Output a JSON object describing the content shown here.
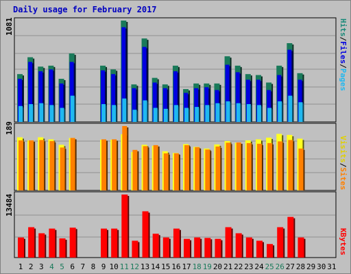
{
  "title": "Daily usage for February 2017",
  "colors": {
    "hits": "#1a7a5a",
    "files": "#0000e0",
    "pages": "#20b8f0",
    "visits": "#ffff20",
    "sites": "#ff8000",
    "kbytes": "#ff0000"
  },
  "legend": {
    "pages": "Pages",
    "files": "Files",
    "hits": "Hits",
    "sep": "/",
    "visits": "Visits",
    "sites": "Sites",
    "kbytes": "KBytes"
  },
  "axis_max": {
    "hits": "1081",
    "visits": "189",
    "kbytes": "13484"
  },
  "chart_data": [
    {
      "type": "bar",
      "name": "Hits/Files/Pages",
      "categories": [
        "1",
        "2",
        "3",
        "4",
        "5",
        "6",
        "7",
        "8",
        "9",
        "10",
        "11",
        "12",
        "13",
        "14",
        "15",
        "16",
        "17",
        "18",
        "19",
        "20",
        "21",
        "22",
        "23",
        "24",
        "25",
        "26",
        "27",
        "28",
        "29",
        "30",
        "31"
      ],
      "weekend_days": [
        "4",
        "5",
        "11",
        "12",
        "18",
        "19",
        "25",
        "26"
      ],
      "ylim": [
        0,
        1081
      ],
      "series": [
        {
          "name": "Hits",
          "values": [
            510,
            690,
            590,
            600,
            460,
            730,
            0,
            0,
            600,
            560,
            1081,
            400,
            890,
            470,
            400,
            600,
            350,
            410,
            410,
            410,
            700,
            600,
            510,
            500,
            420,
            600,
            840,
            520,
            0,
            0,
            0
          ]
        },
        {
          "name": "Files",
          "values": [
            460,
            640,
            540,
            560,
            410,
            640,
            0,
            0,
            550,
            510,
            1010,
            360,
            800,
            420,
            360,
            540,
            310,
            360,
            370,
            340,
            610,
            530,
            450,
            450,
            340,
            500,
            770,
            450,
            0,
            0,
            0
          ]
        },
        {
          "name": "Pages",
          "values": [
            170,
            190,
            200,
            180,
            150,
            280,
            0,
            0,
            190,
            180,
            250,
            130,
            230,
            150,
            140,
            180,
            150,
            160,
            180,
            200,
            220,
            200,
            190,
            180,
            150,
            220,
            280,
            210,
            0,
            0,
            0
          ]
        }
      ]
    },
    {
      "type": "bar",
      "name": "Visits/Sites",
      "categories": [
        "1",
        "2",
        "3",
        "4",
        "5",
        "6",
        "7",
        "8",
        "9",
        "10",
        "11",
        "12",
        "13",
        "14",
        "15",
        "16",
        "17",
        "18",
        "19",
        "20",
        "21",
        "22",
        "23",
        "24",
        "25",
        "26",
        "27",
        "28",
        "29",
        "30",
        "31"
      ],
      "ylim": [
        0,
        189
      ],
      "series": [
        {
          "name": "Visits",
          "values": [
            156,
            147,
            156,
            150,
            134,
            154,
            0,
            0,
            149,
            149,
            165,
            113,
            134,
            131,
            115,
            110,
            136,
            128,
            123,
            135,
            145,
            140,
            147,
            150,
            155,
            166,
            163,
            152,
            0,
            0,
            0
          ]
        },
        {
          "name": "Sites",
          "values": [
            147,
            147,
            148,
            145,
            126,
            154,
            0,
            0,
            150,
            150,
            189,
            119,
            130,
            133,
            109,
            109,
            133,
            127,
            120,
            129,
            140,
            141,
            139,
            137,
            139,
            144,
            148,
            123,
            0,
            0,
            0
          ]
        }
      ]
    },
    {
      "type": "bar",
      "name": "KBytes",
      "categories": [
        "1",
        "2",
        "3",
        "4",
        "5",
        "6",
        "7",
        "8",
        "9",
        "10",
        "11",
        "12",
        "13",
        "14",
        "15",
        "16",
        "17",
        "18",
        "19",
        "20",
        "21",
        "22",
        "23",
        "24",
        "25",
        "26",
        "27",
        "28",
        "29",
        "30",
        "31"
      ],
      "ylim": [
        0,
        13484
      ],
      "series": [
        {
          "name": "KBytes",
          "values": [
            4300,
            6500,
            5200,
            6200,
            4100,
            6400,
            0,
            0,
            6200,
            6200,
            13484,
            3600,
            9900,
            5100,
            4300,
            6200,
            4000,
            4300,
            4200,
            4000,
            6500,
            5200,
            4300,
            3600,
            2900,
            6500,
            8700,
            4300,
            0,
            0,
            0
          ]
        }
      ]
    }
  ]
}
